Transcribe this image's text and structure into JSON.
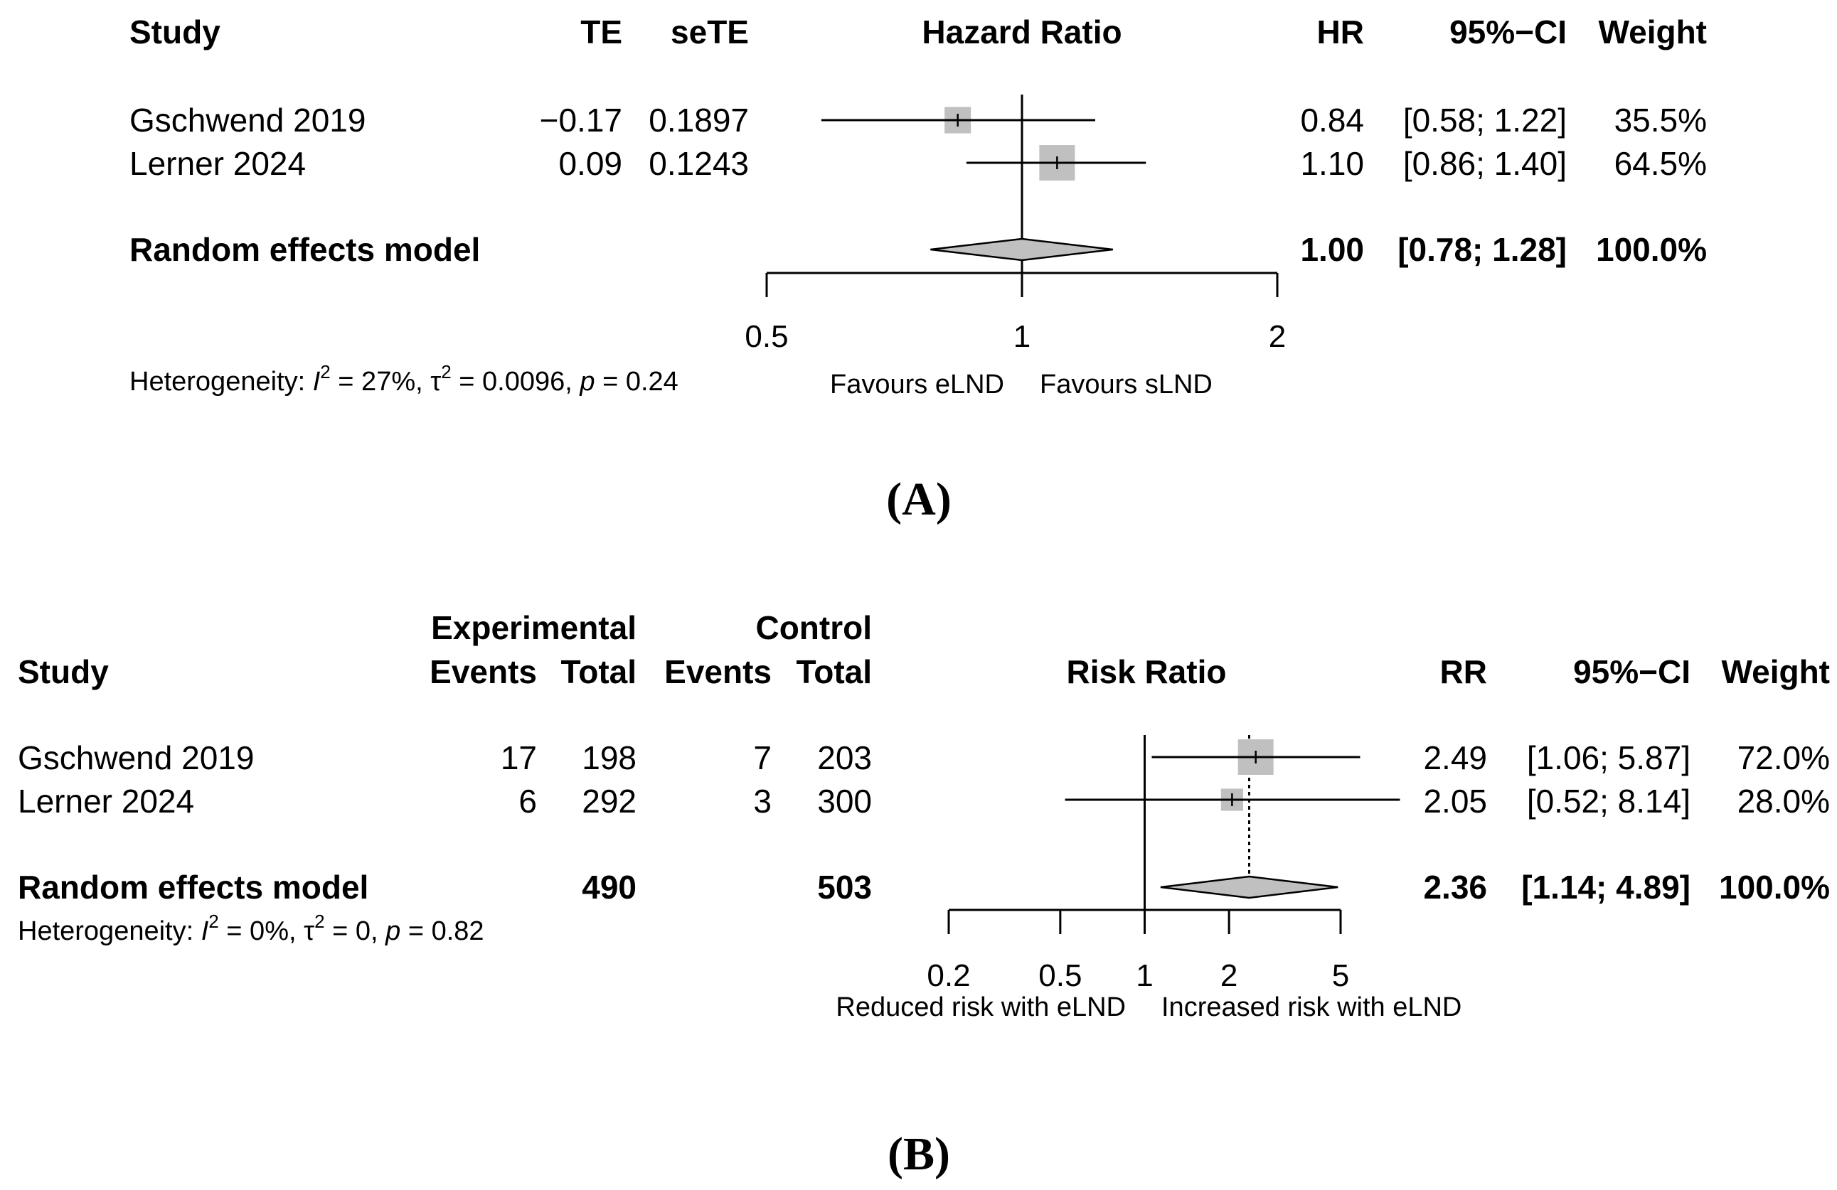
{
  "chart_data": [
    {
      "type": "forest",
      "panel_label": [
        "(",
        "A",
        ")"
      ],
      "measure": "Hazard Ratio",
      "scale": "log",
      "axis_ticks": [
        0.5,
        1,
        2
      ],
      "axis_tick_labels": [
        "0.5",
        "1",
        "2"
      ],
      "null_value": 1,
      "headers": {
        "study": "Study",
        "te": "TE",
        "sete": "seTE",
        "plot": "Hazard Ratio",
        "est": "HR",
        "ci": "95%−CI",
        "weight": "Weight"
      },
      "studies": [
        {
          "name": "Gschwend 2019",
          "te": "−0.17",
          "sete": "0.1897",
          "est_label": "0.84",
          "ci_label": "[0.58; 1.22]",
          "weight_label": "35.5%",
          "est": 0.84,
          "lo": 0.58,
          "hi": 1.22,
          "weight": 35.5
        },
        {
          "name": "Lerner 2024",
          "te": "0.09",
          "sete": "0.1243",
          "est_label": "1.10",
          "ci_label": "[0.86; 1.40]",
          "weight_label": "64.5%",
          "est": 1.1,
          "lo": 0.86,
          "hi": 1.4,
          "weight": 64.5
        }
      ],
      "pooled": {
        "name": "Random effects model",
        "est_label": "1.00",
        "ci_label": "[0.78; 1.28]",
        "weight_label": "100.0%",
        "est": 1.0,
        "lo": 0.78,
        "hi": 1.28
      },
      "heterogeneity": {
        "prefix": "Heterogeneity: ",
        "i2_sym": "I",
        "i2_val": " = 27%, ",
        "tau_sym": "τ",
        "tau_val": " = 0.0096, ",
        "p_sym": "p",
        "p_val": " = 0.24",
        "sup": "2"
      },
      "favours_left": "Favours eLND",
      "favours_right": "Favours sLND"
    },
    {
      "type": "forest",
      "panel_label": [
        "(",
        "B",
        ")"
      ],
      "measure": "Risk Ratio",
      "scale": "log",
      "axis_ticks": [
        0.2,
        0.5,
        1,
        2,
        5
      ],
      "axis_tick_labels": [
        "0.2",
        "0.5",
        "1",
        "2",
        "5"
      ],
      "null_value": 1,
      "headers": {
        "group1": "Experimental",
        "group2": "Control",
        "study": "Study",
        "events1": "Events",
        "total1": "Total",
        "events2": "Events",
        "total2": "Total",
        "plot": "Risk Ratio",
        "est": "RR",
        "ci": "95%−CI",
        "weight": "Weight"
      },
      "studies": [
        {
          "name": "Gschwend 2019",
          "events1": "17",
          "total1": "198",
          "events2": "7",
          "total2": "203",
          "est_label": "2.49",
          "ci_label": "[1.06; 5.87]",
          "weight_label": "72.0%",
          "est": 2.49,
          "lo": 1.06,
          "hi": 5.87,
          "weight": 72.0
        },
        {
          "name": "Lerner 2024",
          "events1": "6",
          "total1": "292",
          "events2": "3",
          "total2": "300",
          "est_label": "2.05",
          "ci_label": "[0.52; 8.14]",
          "weight_label": "28.0%",
          "est": 2.05,
          "lo": 0.52,
          "hi": 8.14,
          "weight": 28.0
        }
      ],
      "pooled": {
        "name": "Random effects model",
        "total1": "490",
        "total2": "503",
        "est_label": "2.36",
        "ci_label": "[1.14; 4.89]",
        "weight_label": "100.0%",
        "est": 2.36,
        "lo": 1.14,
        "hi": 4.89
      },
      "heterogeneity": {
        "prefix": "Heterogeneity: ",
        "i2_sym": "I",
        "i2_val": " = 0%, ",
        "tau_sym": "τ",
        "tau_val": " = 0, ",
        "p_sym": "p",
        "p_val": " = 0.82",
        "sup": "2"
      },
      "favours_left": "Reduced risk with eLND",
      "favours_right": "Increased risk with eLND"
    }
  ],
  "colors": {
    "box": "#c0c0c0",
    "diamond": "#c0c0c0",
    "line": "#000000"
  }
}
